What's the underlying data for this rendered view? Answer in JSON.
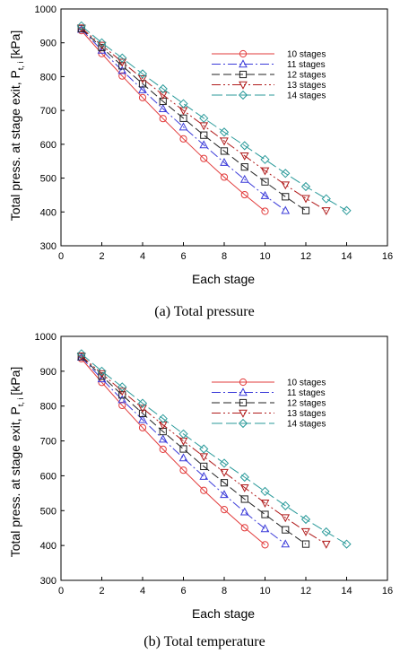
{
  "chart_data": [
    {
      "type": "line",
      "caption": "(a)  Total  pressure",
      "xlabel": "Each stage",
      "ylabel": "Total press. at stage exit, P",
      "ylabel_sub": "t, i",
      "ylabel_unit": "[kPa]",
      "xlim": [
        0,
        16
      ],
      "ylim": [
        300,
        1000
      ],
      "xticks": [
        "0",
        "2",
        "4",
        "6",
        "8",
        "10",
        "12",
        "14",
        "16"
      ],
      "yticks": [
        "300",
        "400",
        "500",
        "600",
        "700",
        "800",
        "900",
        "1000"
      ],
      "legend_position": "top-right",
      "series": [
        {
          "name": "10 stages",
          "marker": "circle",
          "color": "#e23b3b",
          "dash": "",
          "x": [
            1,
            2,
            3,
            4,
            5,
            6,
            7,
            8,
            9,
            10
          ],
          "y": [
            936,
            868,
            802,
            738,
            676,
            616,
            558,
            503,
            451,
            402
          ]
        },
        {
          "name": "11 stages",
          "marker": "triangle-up",
          "color": "#3b3bd9",
          "dash": "10,3,2,3",
          "x": [
            1,
            2,
            3,
            4,
            5,
            6,
            7,
            8,
            9,
            10,
            11
          ],
          "y": [
            940,
            878,
            818,
            761,
            705,
            651,
            598,
            546,
            496,
            448,
            404
          ]
        },
        {
          "name": "12 stages",
          "marker": "square",
          "color": "#222222",
          "dash": "9,4",
          "x": [
            1,
            2,
            3,
            4,
            5,
            6,
            7,
            8,
            9,
            10,
            11,
            12
          ],
          "y": [
            942,
            886,
            832,
            779,
            727,
            677,
            627,
            580,
            533,
            489,
            445,
            404
          ]
        },
        {
          "name": "13 stages",
          "marker": "triangle-down",
          "color": "#b01a1a",
          "dash": "10,3,2,3,2,3",
          "x": [
            1,
            2,
            3,
            4,
            5,
            6,
            7,
            8,
            9,
            10,
            11,
            12,
            13
          ],
          "y": [
            944,
            893,
            843,
            794,
            746,
            700,
            655,
            610,
            566,
            522,
            480,
            440,
            404
          ]
        },
        {
          "name": "14 stages",
          "marker": "diamond",
          "color": "#2a9a9a",
          "dash": "12,4",
          "x": [
            1,
            2,
            3,
            4,
            5,
            6,
            7,
            8,
            9,
            10,
            11,
            12,
            13,
            14
          ],
          "y": [
            950,
            900,
            855,
            808,
            764,
            720,
            677,
            636,
            596,
            555,
            514,
            475,
            439,
            404
          ]
        }
      ]
    },
    {
      "type": "line",
      "caption": "(b)  Total  temperature",
      "xlabel": "Each stage",
      "ylabel": "Total press. at stage exit, P",
      "ylabel_sub": "t, i",
      "ylabel_unit": "[kPa]",
      "xlim": [
        0,
        16
      ],
      "ylim": [
        300,
        1000
      ],
      "xticks": [
        "0",
        "2",
        "4",
        "6",
        "8",
        "10",
        "12",
        "14",
        "16"
      ],
      "yticks": [
        "300",
        "400",
        "500",
        "600",
        "700",
        "800",
        "900",
        "1000"
      ],
      "legend_position": "top-right",
      "series": [
        {
          "name": "10 stages",
          "marker": "circle",
          "color": "#e23b3b",
          "dash": "",
          "x": [
            1,
            2,
            3,
            4,
            5,
            6,
            7,
            8,
            9,
            10
          ],
          "y": [
            936,
            868,
            802,
            738,
            676,
            616,
            558,
            503,
            451,
            402
          ]
        },
        {
          "name": "11 stages",
          "marker": "triangle-up",
          "color": "#3b3bd9",
          "dash": "10,3,2,3",
          "x": [
            1,
            2,
            3,
            4,
            5,
            6,
            7,
            8,
            9,
            10,
            11
          ],
          "y": [
            940,
            878,
            818,
            761,
            705,
            651,
            598,
            546,
            496,
            448,
            404
          ]
        },
        {
          "name": "12 stages",
          "marker": "square",
          "color": "#222222",
          "dash": "9,4",
          "x": [
            1,
            2,
            3,
            4,
            5,
            6,
            7,
            8,
            9,
            10,
            11,
            12
          ],
          "y": [
            942,
            886,
            832,
            779,
            727,
            677,
            627,
            580,
            533,
            489,
            445,
            404
          ]
        },
        {
          "name": "13 stages",
          "marker": "triangle-down",
          "color": "#b01a1a",
          "dash": "10,3,2,3,2,3",
          "x": [
            1,
            2,
            3,
            4,
            5,
            6,
            7,
            8,
            9,
            10,
            11,
            12,
            13
          ],
          "y": [
            944,
            893,
            843,
            794,
            746,
            700,
            655,
            610,
            566,
            522,
            480,
            440,
            404
          ]
        },
        {
          "name": "14 stages",
          "marker": "diamond",
          "color": "#2a9a9a",
          "dash": "12,4",
          "x": [
            1,
            2,
            3,
            4,
            5,
            6,
            7,
            8,
            9,
            10,
            11,
            12,
            13,
            14
          ],
          "y": [
            950,
            900,
            855,
            808,
            764,
            720,
            677,
            636,
            596,
            555,
            514,
            475,
            439,
            404
          ]
        }
      ]
    }
  ]
}
